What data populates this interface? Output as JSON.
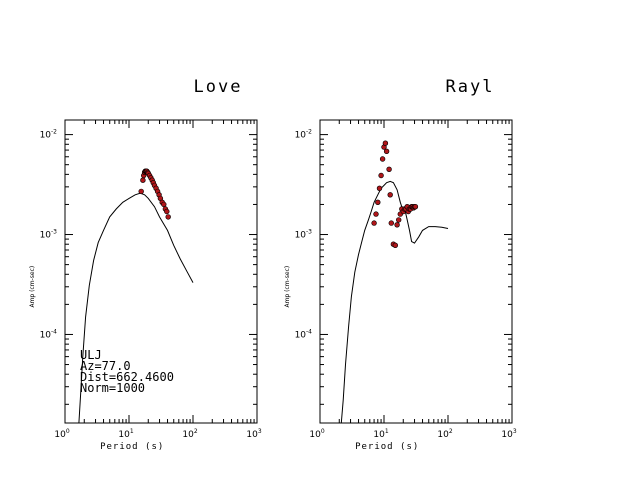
{
  "chart_data": [
    {
      "type": "scatter",
      "title": "Love",
      "xlabel": "Period (s)",
      "ylabel": "Amp (cm-sec)",
      "x_scale": "log",
      "y_scale": "log",
      "xlim": [
        1,
        1000
      ],
      "ylim": [
        1.3e-05,
        0.014
      ],
      "grid": false,
      "x_ticks": [
        {
          "base": "10",
          "exp": "0"
        },
        {
          "base": "10",
          "exp": "1"
        },
        {
          "base": "10",
          "exp": "2"
        },
        {
          "base": "10",
          "exp": "3"
        }
      ],
      "y_ticks": [
        {
          "base": "10",
          "exp": "-2"
        },
        {
          "base": "10",
          "exp": "-3"
        },
        {
          "base": "10",
          "exp": "-4"
        }
      ],
      "annotations": [
        "ULJ",
        "Az=77.0",
        "Dist=662.4600",
        "Norm=1000"
      ],
      "series": [
        {
          "kind": "line",
          "x": [
            1.65,
            1.75,
            1.9,
            2.1,
            2.4,
            2.8,
            3.3,
            4.0,
            5.0,
            6.3,
            8.0,
            10.0,
            12.5,
            15.0,
            17.5,
            20.0,
            25.0,
            30.0,
            40.0,
            50.0,
            63.0,
            80.0,
            100.0
          ],
          "y": [
            1.3e-05,
            2.5e-05,
            6e-05,
            0.00015,
            0.00031,
            0.00055,
            0.00083,
            0.0011,
            0.0015,
            0.0018,
            0.0021,
            0.0023,
            0.0025,
            0.0026,
            0.0025,
            0.0023,
            0.0019,
            0.0015,
            0.0011,
            0.00078,
            0.00057,
            0.00043,
            0.00033
          ]
        },
        {
          "kind": "points",
          "x": [
            15.5,
            16.5,
            17.0,
            17.5,
            18.0,
            18.5,
            19.0,
            19.5,
            20.0,
            21.0,
            22.0,
            23.0,
            24.0,
            25.0,
            26.5,
            28.0,
            29.5,
            31.0,
            33.0,
            35.0,
            37.0,
            39.0,
            41.0
          ],
          "y": [
            0.0027,
            0.0035,
            0.0039,
            0.0042,
            0.0043,
            0.0043,
            0.0043,
            0.0042,
            0.0041,
            0.0039,
            0.0037,
            0.0035,
            0.0033,
            0.0031,
            0.0029,
            0.0027,
            0.0025,
            0.0023,
            0.0021,
            0.002,
            0.0018,
            0.0017,
            0.0015
          ]
        }
      ]
    },
    {
      "type": "scatter",
      "title": "Rayl",
      "xlabel": "Period (s)",
      "ylabel": "Amp (cm-sec)",
      "x_scale": "log",
      "y_scale": "log",
      "xlim": [
        1,
        1000
      ],
      "ylim": [
        1.3e-05,
        0.014
      ],
      "grid": false,
      "x_ticks": [
        {
          "base": "10",
          "exp": "0"
        },
        {
          "base": "10",
          "exp": "1"
        },
        {
          "base": "10",
          "exp": "2"
        },
        {
          "base": "10",
          "exp": "3"
        }
      ],
      "y_ticks": [
        {
          "base": "10",
          "exp": "-2"
        },
        {
          "base": "10",
          "exp": "-3"
        },
        {
          "base": "10",
          "exp": "-4"
        }
      ],
      "series": [
        {
          "kind": "line",
          "x": [
            2.15,
            2.3,
            2.5,
            2.8,
            3.1,
            3.5,
            4.0,
            4.5,
            5.0,
            5.7,
            6.3,
            7.0,
            8.0,
            9.0,
            10.0,
            11.0,
            12.5,
            14.0,
            16.0,
            18.0,
            20.0,
            21.5,
            23.0,
            25.0,
            27.0,
            30.0,
            35.0,
            40.0,
            50.0,
            63.0,
            80.0,
            100.0
          ],
          "y": [
            1.3e-05,
            2.2e-05,
            5e-05,
            0.00012,
            0.00024,
            0.00042,
            0.00063,
            0.00085,
            0.0011,
            0.0014,
            0.0017,
            0.0021,
            0.0025,
            0.0029,
            0.0031,
            0.0033,
            0.0034,
            0.0033,
            0.0028,
            0.0021,
            0.0017,
            0.0017,
            0.0014,
            0.0011,
            0.00085,
            0.00082,
            0.00095,
            0.0011,
            0.0012,
            0.0012,
            0.00118,
            0.00115
          ]
        },
        {
          "kind": "points",
          "x": [
            7.0,
            7.5,
            8.0,
            8.5,
            9.0,
            9.5,
            10.0,
            10.5,
            11.0,
            12.0,
            12.5,
            13.0,
            14.0,
            15.0,
            16.0,
            17.0,
            18.0,
            19.0,
            20.0,
            21.0,
            22.0,
            23.0,
            24.0,
            25.0,
            26.0,
            27.0,
            28.0,
            29.0,
            30.0,
            31.0
          ],
          "y": [
            0.0013,
            0.0016,
            0.0021,
            0.0029,
            0.0039,
            0.0057,
            0.0075,
            0.0082,
            0.0068,
            0.0045,
            0.0025,
            0.0013,
            0.0008,
            0.00078,
            0.00125,
            0.0014,
            0.0016,
            0.0018,
            0.0017,
            0.0018,
            0.0018,
            0.0019,
            0.0017,
            0.0018,
            0.0018,
            0.0019,
            0.0019,
            0.00185,
            0.0019,
            0.0019
          ]
        }
      ]
    }
  ]
}
